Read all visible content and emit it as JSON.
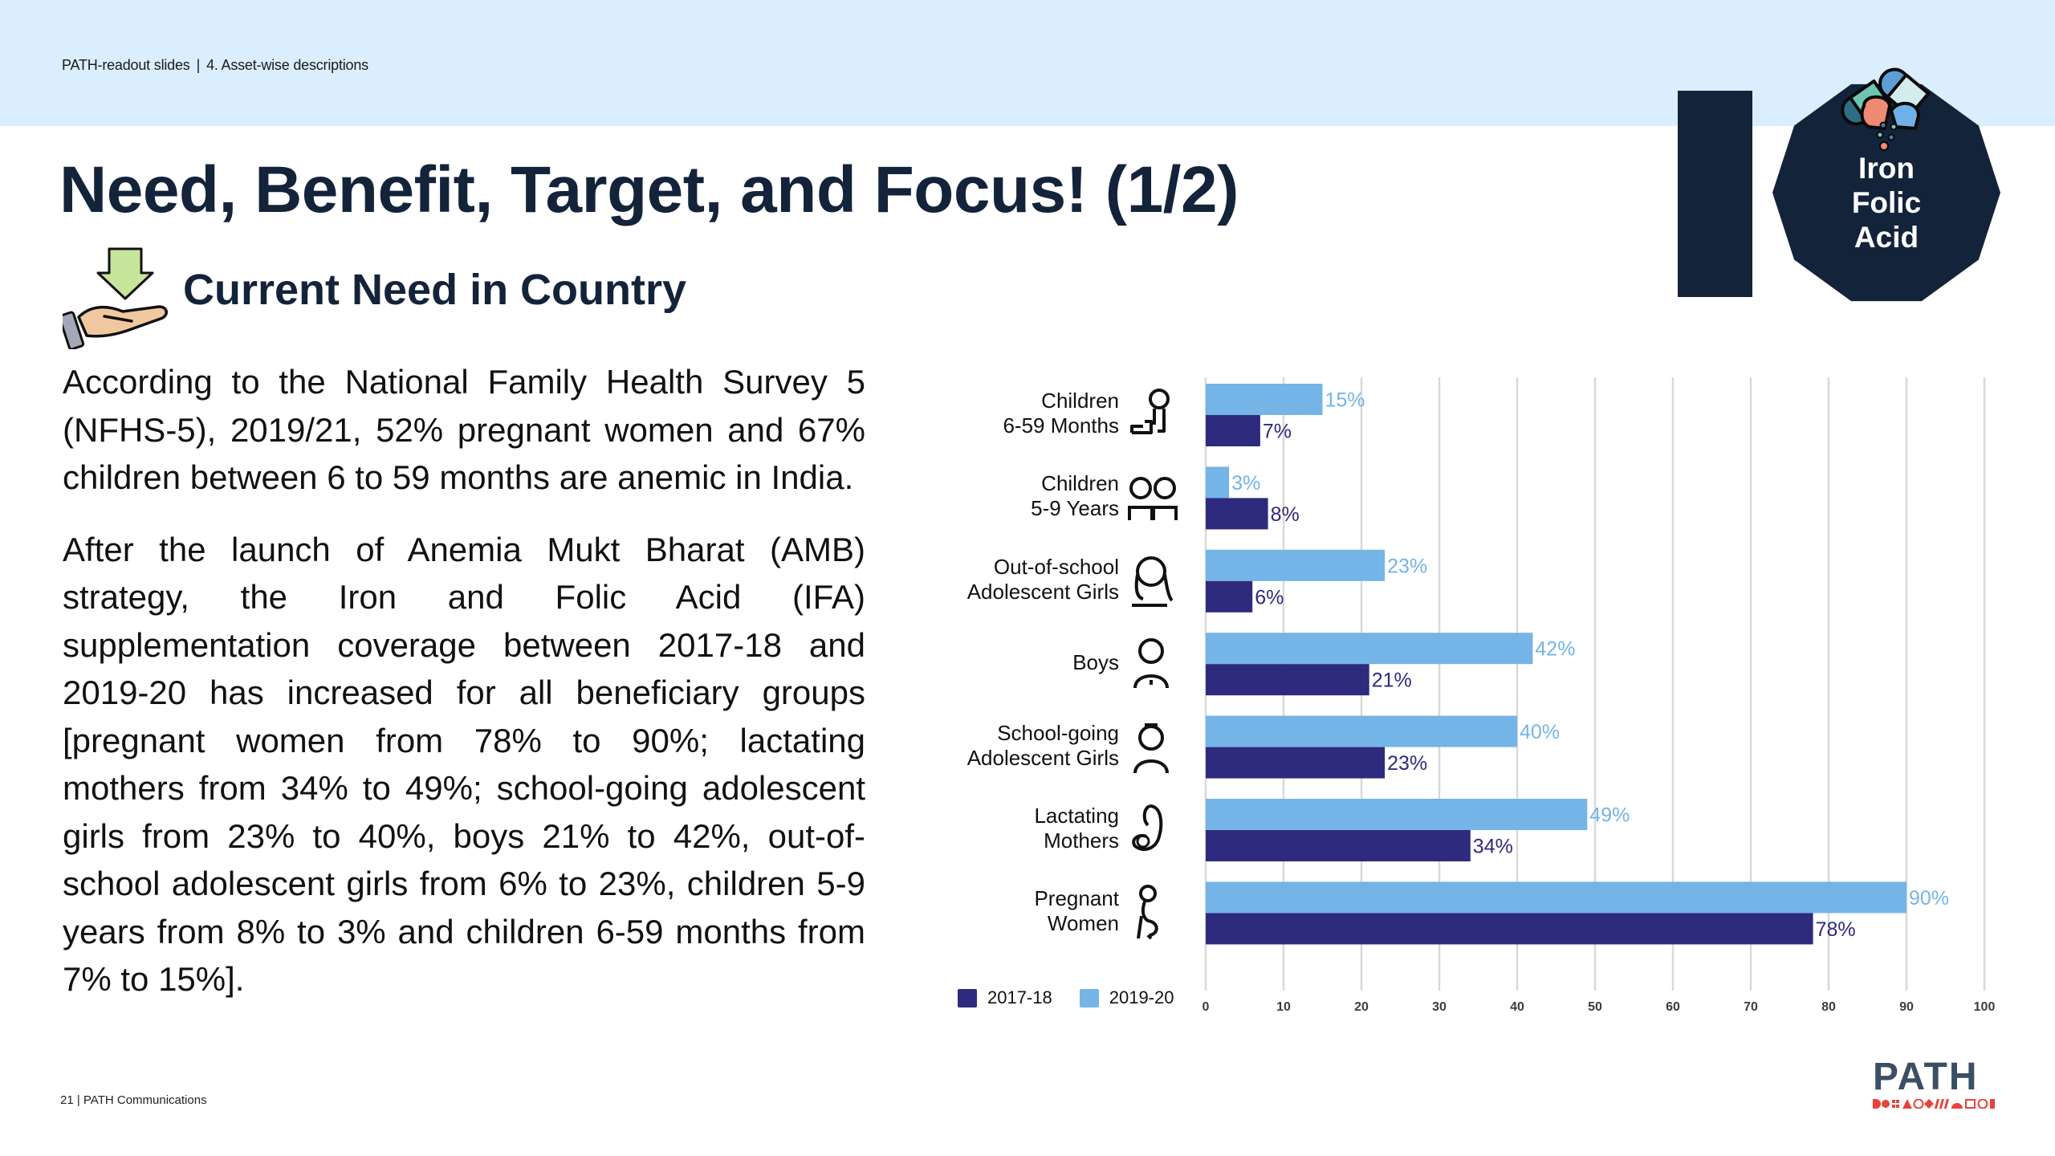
{
  "header": {
    "breadcrumb": [
      "PATH-readout slides",
      "4. Asset-wise descriptions"
    ],
    "separator": "|"
  },
  "title": "Need, Benefit, Target, and Focus! (1/2)",
  "section": {
    "icon": "hand-receiving-arrow-icon",
    "subtitle": "Current Need in Country"
  },
  "body": {
    "paragraphs": [
      "According to the National Family Health Survey 5 (NFHS-5), 2019/21, 52% pregnant women and 67% children between 6 to 59 months are anemic in India.",
      "After the launch of Anemia Mukt Bharat (AMB) strategy, the Iron and Folic Acid (IFA) supplementation coverage between 2017-18 and 2019-20 has increased for all beneficiary groups [pregnant women from 78% to 90%; lactating mothers from 34% to 49%; school-going adolescent girls from 23% to 40%, boys 21% to 42%, out-of-school adolescent girls from 6% to 23%, children 5-9 years from 8% to 3% and children 6-59 months from 7% to 15%]."
    ]
  },
  "badge": {
    "icon": "pills-icon",
    "lines": [
      "Iron",
      "Folic",
      "Acid"
    ],
    "color": "#13233a"
  },
  "chart_data": {
    "type": "bar",
    "orientation": "horizontal",
    "categories": [
      {
        "label": [
          "Children",
          "6-59 Months"
        ],
        "icon": "crawling-baby-icon"
      },
      {
        "label": [
          "Children",
          "5-9 Years"
        ],
        "icon": "two-children-icon"
      },
      {
        "label": [
          "Out-of-school",
          "Adolescent Girls"
        ],
        "icon": "girl-icon"
      },
      {
        "label": [
          "Boys"
        ],
        "icon": "boy-icon"
      },
      {
        "label": [
          "School-going",
          "Adolescent Girls"
        ],
        "icon": "schoolgirl-icon"
      },
      {
        "label": [
          "Lactating",
          "Mothers"
        ],
        "icon": "mother-baby-icon"
      },
      {
        "label": [
          "Pregnant",
          "Women"
        ],
        "icon": "pregnant-woman-icon"
      }
    ],
    "series": [
      {
        "name": "2019-20",
        "color": "#74b4e6",
        "values": [
          15,
          3,
          23,
          42,
          40,
          49,
          90
        ]
      },
      {
        "name": "2017-18",
        "color": "#2e2a7e",
        "values": [
          7,
          8,
          6,
          21,
          23,
          34,
          78
        ]
      }
    ],
    "legend": [
      {
        "name": "2017-18",
        "color": "#2e2a7e"
      },
      {
        "name": "2019-20",
        "color": "#74b4e6"
      }
    ],
    "legend_position": "bottom-left",
    "value_suffix": "%",
    "xlim": [
      0,
      100
    ],
    "xticks": [
      0,
      10,
      20,
      30,
      40,
      50,
      60,
      70,
      80,
      90,
      100
    ],
    "grid": true,
    "title": "",
    "xlabel": "",
    "ylabel": ""
  },
  "footer": {
    "text": "21 | PATH Communications"
  },
  "brand": {
    "name": "PATH",
    "color": "#3a4f66",
    "accent": "#e8443a"
  }
}
